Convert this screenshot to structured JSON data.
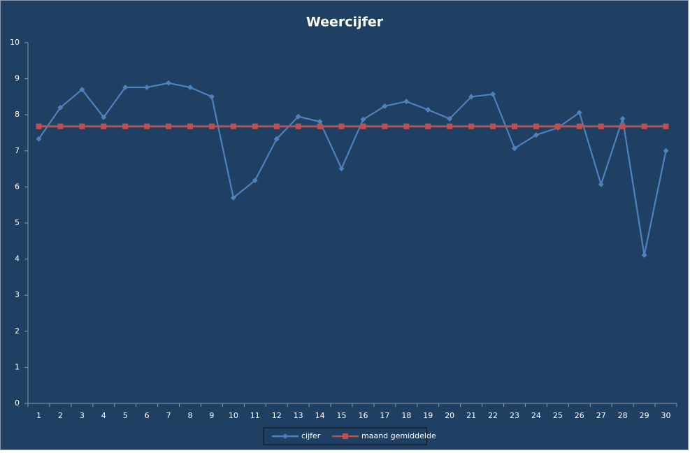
{
  "chart_data": {
    "type": "line",
    "title": "Weercijfer",
    "categories": [
      "1",
      "2",
      "3",
      "4",
      "5",
      "6",
      "7",
      "8",
      "9",
      "10",
      "11",
      "12",
      "13",
      "14",
      "15",
      "16",
      "17",
      "18",
      "19",
      "20",
      "21",
      "22",
      "23",
      "24",
      "25",
      "26",
      "27",
      "28",
      "29",
      "30"
    ],
    "series": [
      {
        "name": "cijfer",
        "color": "#4F81BD",
        "marker": "diamond",
        "values": [
          7.33,
          8.2,
          8.7,
          7.93,
          8.76,
          8.76,
          8.88,
          8.76,
          8.5,
          5.7,
          6.18,
          7.33,
          7.95,
          7.81,
          6.51,
          7.87,
          8.24,
          8.37,
          8.14,
          7.89,
          8.5,
          8.57,
          7.07,
          7.44,
          7.64,
          8.06,
          6.07,
          7.89,
          4.11,
          7.0
        ]
      },
      {
        "name": "maand gemiddelde",
        "color": "#C0504D",
        "marker": "square",
        "values": [
          7.68,
          7.68,
          7.68,
          7.68,
          7.68,
          7.68,
          7.68,
          7.68,
          7.68,
          7.68,
          7.68,
          7.68,
          7.68,
          7.68,
          7.68,
          7.68,
          7.68,
          7.68,
          7.68,
          7.68,
          7.68,
          7.68,
          7.68,
          7.68,
          7.68,
          7.68,
          7.68,
          7.68,
          7.68,
          7.68
        ]
      }
    ],
    "ylim": [
      0,
      10
    ],
    "yticks": [
      0,
      1,
      2,
      3,
      4,
      5,
      6,
      7,
      8,
      9,
      10
    ],
    "grid": false,
    "legend": "bottom"
  }
}
